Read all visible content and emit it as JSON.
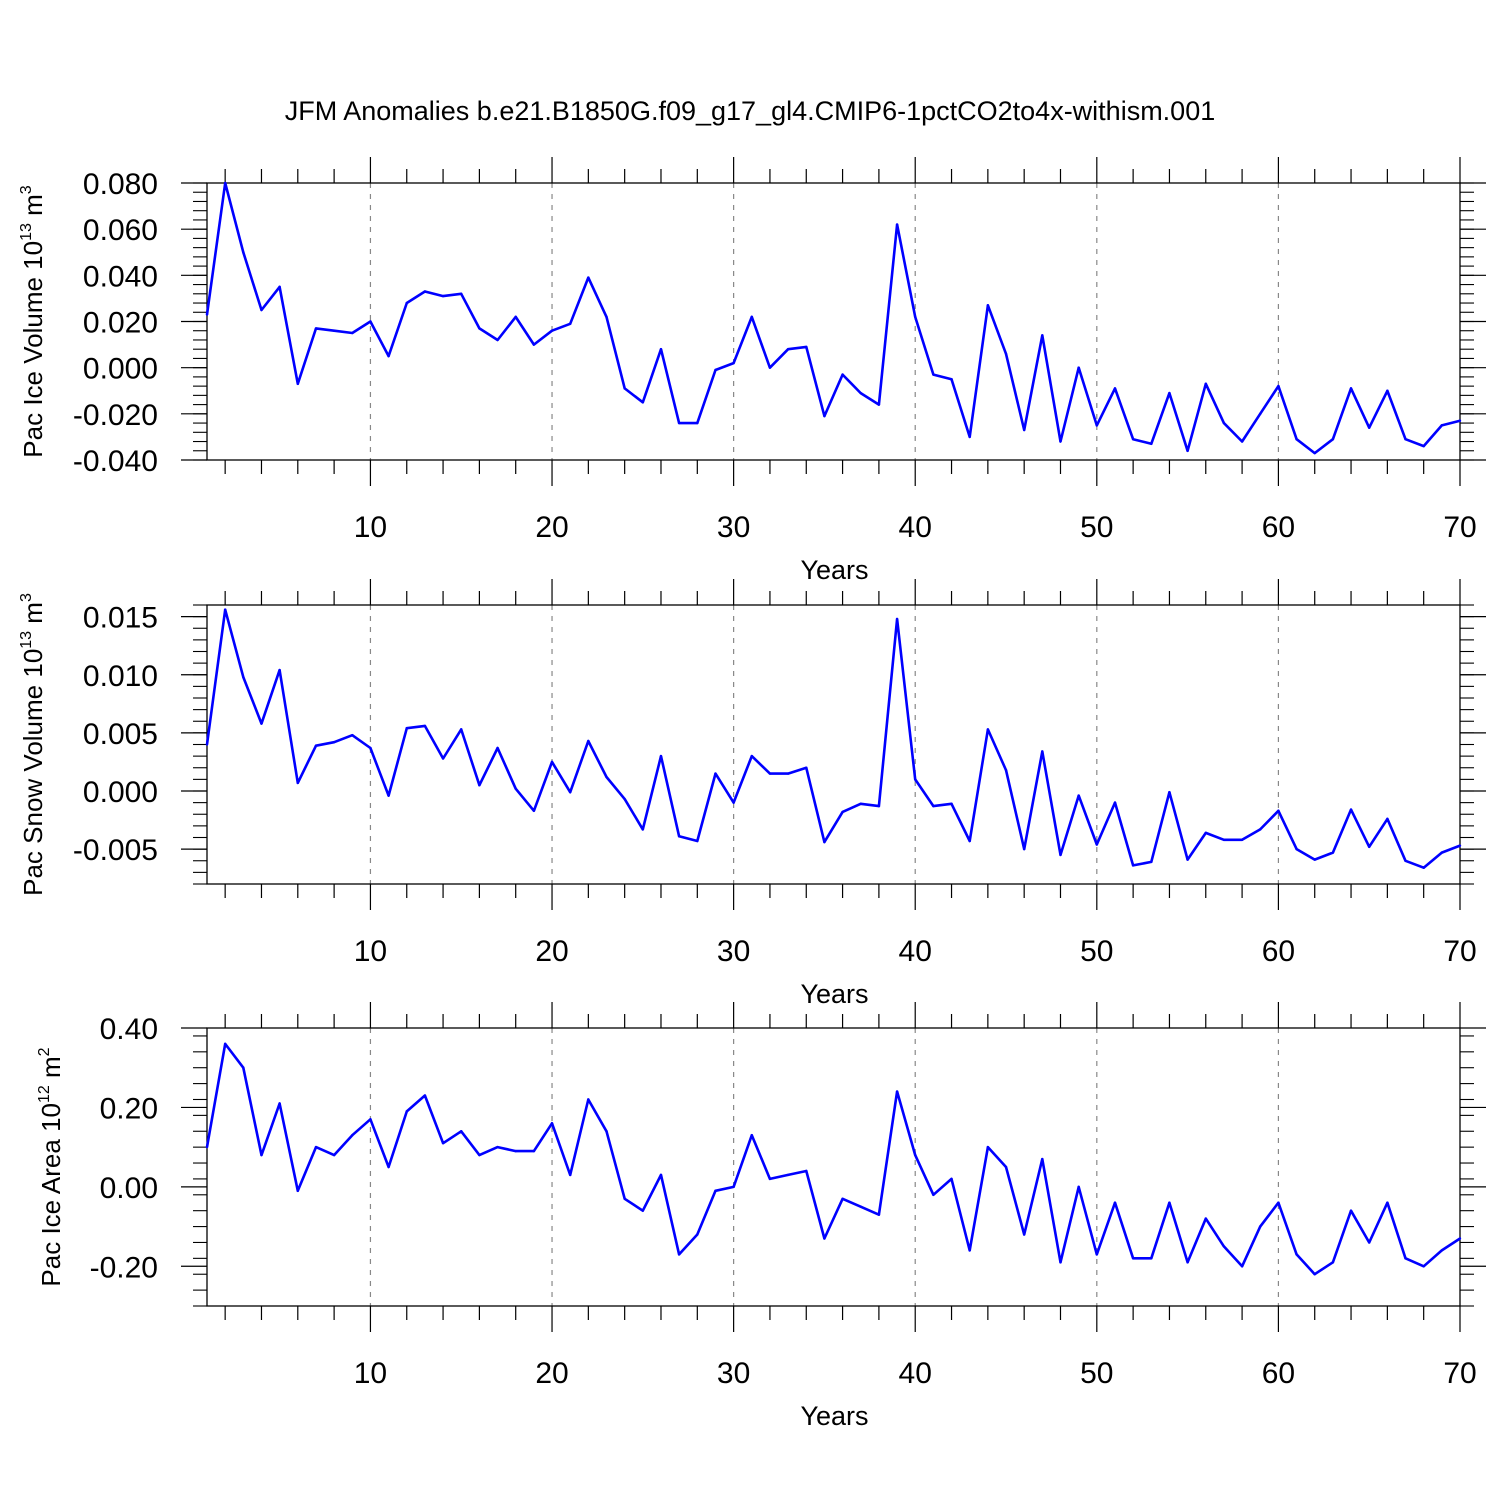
{
  "chart_data": {
    "title": "JFM Anomalies b.e21.B1850G.f09_g17_gl4.CMIP6-1pctCO2to4x-withism.001",
    "line_color": "#0000ff",
    "grid": "dashed vertical lines at major x ticks",
    "x": [
      1,
      2,
      3,
      4,
      5,
      6,
      7,
      8,
      9,
      10,
      11,
      12,
      13,
      14,
      15,
      16,
      17,
      18,
      19,
      20,
      21,
      22,
      23,
      24,
      25,
      26,
      27,
      28,
      29,
      30,
      31,
      32,
      33,
      34,
      35,
      36,
      37,
      38,
      39,
      40,
      41,
      42,
      43,
      44,
      45,
      46,
      47,
      48,
      49,
      50,
      51,
      52,
      53,
      54,
      55,
      56,
      57,
      58,
      59,
      60,
      61,
      62,
      63,
      64,
      65,
      66,
      67,
      68,
      69,
      70
    ],
    "panels": [
      {
        "type": "line",
        "xlabel": "Years",
        "ylabel_base": "Pac Ice Volume 10",
        "ylabel_exp": "13",
        "ylabel_unit": "m",
        "ylabel_unit_exp": "3",
        "xlim": [
          1,
          70
        ],
        "ylim": [
          -0.04,
          0.08
        ],
        "xticks": [
          10,
          20,
          30,
          40,
          50,
          60,
          70
        ],
        "xtick_labels": [
          "10",
          "20",
          "30",
          "40",
          "50",
          "60",
          "70"
        ],
        "yticks": [
          -0.04,
          -0.02,
          0.0,
          0.02,
          0.04,
          0.06,
          0.08
        ],
        "ytick_labels": [
          "-0.040",
          "-0.020",
          "0.000",
          "0.020",
          "0.040",
          "0.060",
          "0.080"
        ],
        "values": [
          0.023,
          0.08,
          0.05,
          0.025,
          0.035,
          -0.007,
          0.017,
          0.016,
          0.015,
          0.02,
          0.005,
          0.028,
          0.033,
          0.031,
          0.032,
          0.017,
          0.012,
          0.022,
          0.01,
          0.016,
          0.019,
          0.039,
          0.022,
          -0.009,
          -0.015,
          0.008,
          -0.024,
          -0.024,
          -0.001,
          0.002,
          0.022,
          0.0,
          0.008,
          0.009,
          -0.021,
          -0.003,
          -0.011,
          -0.016,
          0.062,
          0.022,
          -0.003,
          -0.005,
          -0.03,
          0.027,
          0.006,
          -0.027,
          0.014,
          -0.032,
          0.0,
          -0.025,
          -0.009,
          -0.031,
          -0.033,
          -0.011,
          -0.036,
          -0.007,
          -0.024,
          -0.032,
          -0.02,
          -0.008,
          -0.031,
          -0.037,
          -0.031,
          -0.009,
          -0.026,
          -0.01,
          -0.031,
          -0.034,
          -0.025,
          -0.023
        ]
      },
      {
        "type": "line",
        "xlabel": "Years",
        "ylabel_base": "Pac Snow Volume 10",
        "ylabel_exp": "13",
        "ylabel_unit": "m",
        "ylabel_unit_exp": "3",
        "xlim": [
          1,
          70
        ],
        "ylim": [
          -0.008,
          0.016
        ],
        "xticks": [
          10,
          20,
          30,
          40,
          50,
          60,
          70
        ],
        "xtick_labels": [
          "10",
          "20",
          "30",
          "40",
          "50",
          "60",
          "70"
        ],
        "yticks": [
          -0.005,
          0.0,
          0.005,
          0.01,
          0.015
        ],
        "ytick_labels": [
          "-0.005",
          "0.000",
          "0.005",
          "0.010",
          "0.015"
        ],
        "values": [
          0.004,
          0.0156,
          0.0098,
          0.0058,
          0.0104,
          0.0007,
          0.0039,
          0.0042,
          0.0048,
          0.0037,
          -0.0004,
          0.0054,
          0.0056,
          0.0028,
          0.0053,
          0.0005,
          0.0037,
          0.0002,
          -0.0017,
          0.0025,
          -0.0001,
          0.0043,
          0.0012,
          -0.0007,
          -0.0033,
          0.003,
          -0.0039,
          -0.0043,
          0.0015,
          -0.001,
          0.003,
          0.0015,
          0.0015,
          0.002,
          -0.0044,
          -0.0018,
          -0.0011,
          -0.0013,
          0.0148,
          0.001,
          -0.0013,
          -0.0011,
          -0.0043,
          0.0053,
          0.0018,
          -0.005,
          0.0034,
          -0.0055,
          -0.0004,
          -0.0046,
          -0.001,
          -0.0064,
          -0.0061,
          -0.0001,
          -0.0059,
          -0.0036,
          -0.0042,
          -0.0042,
          -0.0033,
          -0.0017,
          -0.005,
          -0.0059,
          -0.0053,
          -0.0016,
          -0.0048,
          -0.0024,
          -0.006,
          -0.0066,
          -0.0053,
          -0.0047
        ]
      },
      {
        "type": "line",
        "xlabel": "Years",
        "ylabel_base": "Pac Ice Area 10",
        "ylabel_exp": "12",
        "ylabel_unit": "m",
        "ylabel_unit_exp": "2",
        "xlim": [
          1,
          70
        ],
        "ylim": [
          -0.3,
          0.4
        ],
        "xticks": [
          10,
          20,
          30,
          40,
          50,
          60,
          70
        ],
        "xtick_labels": [
          "10",
          "20",
          "30",
          "40",
          "50",
          "60",
          "70"
        ],
        "yticks": [
          -0.2,
          0.0,
          0.2,
          0.4
        ],
        "ytick_labels": [
          "-0.20",
          "0.00",
          "0.20",
          "0.40"
        ],
        "values": [
          0.1,
          0.36,
          0.3,
          0.08,
          0.21,
          -0.01,
          0.1,
          0.08,
          0.13,
          0.17,
          0.05,
          0.19,
          0.23,
          0.11,
          0.14,
          0.08,
          0.1,
          0.09,
          0.09,
          0.16,
          0.03,
          0.22,
          0.14,
          -0.03,
          -0.06,
          0.03,
          -0.17,
          -0.12,
          -0.01,
          0.0,
          0.13,
          0.02,
          0.03,
          0.04,
          -0.13,
          -0.03,
          -0.05,
          -0.07,
          0.24,
          0.08,
          -0.02,
          0.02,
          -0.16,
          0.1,
          0.05,
          -0.12,
          0.07,
          -0.19,
          0.0,
          -0.17,
          -0.04,
          -0.18,
          -0.18,
          -0.04,
          -0.19,
          -0.08,
          -0.15,
          -0.2,
          -0.1,
          -0.04,
          -0.17,
          -0.22,
          -0.19,
          -0.06,
          -0.14,
          -0.04,
          -0.18,
          -0.2,
          -0.16,
          -0.13
        ]
      }
    ]
  }
}
